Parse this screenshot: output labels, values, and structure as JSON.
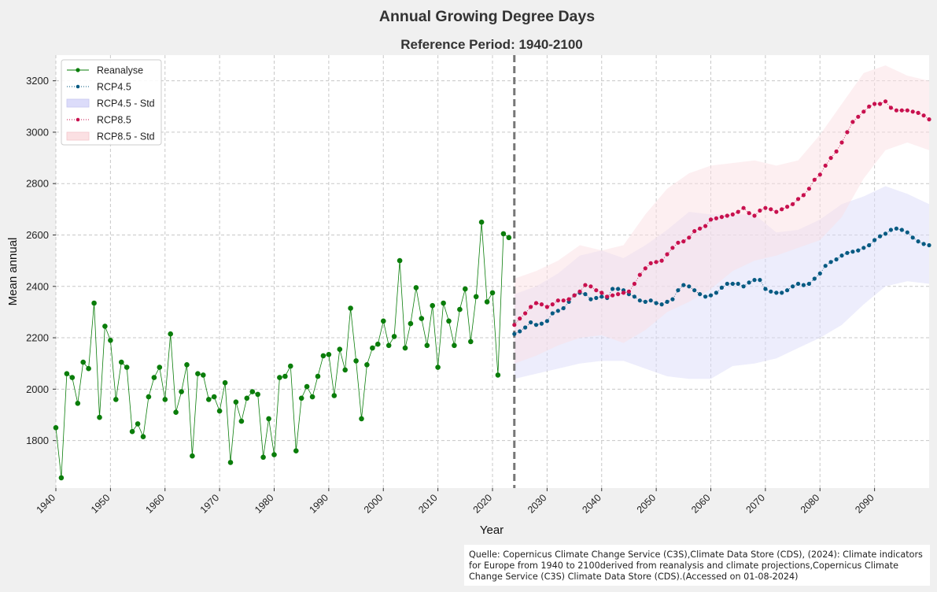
{
  "chart_data": {
    "type": "line",
    "title": "Annual Growing Degree Days",
    "subtitle": "Reference Period: 1940-2100",
    "xlabel": "Year",
    "ylabel": "Mean annual",
    "xlim": [
      1940,
      2100
    ],
    "ylim": [
      1615,
      3300
    ],
    "x_ticks": [
      1940,
      1950,
      1960,
      1970,
      1980,
      1990,
      2000,
      2010,
      2020,
      2030,
      2040,
      2050,
      2060,
      2070,
      2080,
      2090
    ],
    "y_ticks": [
      1800,
      2000,
      2200,
      2400,
      2600,
      2800,
      3000,
      3200
    ],
    "grid": true,
    "legend_position": "top-left",
    "reference_line_year": 2024,
    "colors": {
      "reanalyse": "#0a7d0a",
      "rcp45": "#065a82",
      "rcp45_band": "#dcdcfa",
      "rcp85": "#c8104e",
      "rcp85_band": "#fbe0e3",
      "vline": "#777777"
    },
    "legend": [
      "Reanalyse",
      "RCP4.5",
      "RCP4.5 - Std",
      "RCP8.5",
      "RCP8.5 - Std"
    ],
    "series": [
      {
        "name": "Reanalyse",
        "x": [
          1940,
          1941,
          1942,
          1943,
          1944,
          1945,
          1946,
          1947,
          1948,
          1949,
          1950,
          1951,
          1952,
          1953,
          1954,
          1955,
          1956,
          1957,
          1958,
          1959,
          1960,
          1961,
          1962,
          1963,
          1964,
          1965,
          1966,
          1967,
          1968,
          1969,
          1970,
          1971,
          1972,
          1973,
          1974,
          1975,
          1976,
          1977,
          1978,
          1979,
          1980,
          1981,
          1982,
          1983,
          1984,
          1985,
          1986,
          1987,
          1988,
          1989,
          1990,
          1991,
          1992,
          1993,
          1994,
          1995,
          1996,
          1997,
          1998,
          1999,
          2000,
          2001,
          2002,
          2003,
          2004,
          2005,
          2006,
          2007,
          2008,
          2009,
          2010,
          2011,
          2012,
          2013,
          2014,
          2015,
          2016,
          2017,
          2018,
          2019,
          2020,
          2021,
          2022,
          2023
        ],
        "y": [
          1850,
          1655,
          2060,
          2045,
          1945,
          2105,
          2080,
          2335,
          1890,
          2245,
          2190,
          1960,
          2105,
          2085,
          1835,
          1865,
          1815,
          1970,
          2045,
          2085,
          1960,
          2215,
          1910,
          1990,
          2095,
          1740,
          2060,
          2055,
          1960,
          1970,
          1915,
          2025,
          1715,
          1950,
          1875,
          1965,
          1990,
          1980,
          1735,
          1885,
          1745,
          2045,
          2050,
          2090,
          1760,
          1965,
          2010,
          1970,
          2050,
          2130,
          2135,
          1975,
          2155,
          2075,
          2315,
          2110,
          1885,
          2095,
          2160,
          2175,
          2265,
          2170,
          2205,
          2500,
          2160,
          2255,
          2395,
          2275,
          2170,
          2325,
          2085,
          2335,
          2265,
          2170,
          2310,
          2390,
          2185,
          2360,
          2650,
          2340,
          2375,
          2055,
          2605,
          2590
        ]
      },
      {
        "name": "RCP4.5",
        "x": [
          2024,
          2025,
          2026,
          2027,
          2028,
          2029,
          2030,
          2031,
          2032,
          2033,
          2034,
          2035,
          2036,
          2037,
          2038,
          2039,
          2040,
          2041,
          2042,
          2043,
          2044,
          2045,
          2046,
          2047,
          2048,
          2049,
          2050,
          2051,
          2052,
          2053,
          2054,
          2055,
          2056,
          2057,
          2058,
          2059,
          2060,
          2061,
          2062,
          2063,
          2064,
          2065,
          2066,
          2067,
          2068,
          2069,
          2070,
          2071,
          2072,
          2073,
          2074,
          2075,
          2076,
          2077,
          2078,
          2079,
          2080,
          2081,
          2082,
          2083,
          2084,
          2085,
          2086,
          2087,
          2088,
          2089,
          2090,
          2091,
          2092,
          2093,
          2094,
          2095,
          2096,
          2097,
          2098,
          2099,
          2100
        ],
        "y": [
          2215,
          2225,
          2240,
          2260,
          2250,
          2255,
          2265,
          2295,
          2305,
          2315,
          2340,
          2365,
          2375,
          2370,
          2350,
          2355,
          2360,
          2355,
          2390,
          2390,
          2385,
          2370,
          2360,
          2345,
          2340,
          2345,
          2335,
          2330,
          2340,
          2350,
          2385,
          2405,
          2400,
          2385,
          2370,
          2360,
          2365,
          2375,
          2395,
          2410,
          2410,
          2410,
          2400,
          2415,
          2425,
          2425,
          2390,
          2380,
          2375,
          2375,
          2385,
          2400,
          2410,
          2405,
          2410,
          2430,
          2450,
          2480,
          2495,
          2505,
          2520,
          2530,
          2535,
          2540,
          2550,
          2560,
          2580,
          2595,
          2605,
          2620,
          2625,
          2620,
          2610,
          2590,
          2575,
          2565,
          2560
        ]
      },
      {
        "name": "RCP8.5",
        "x": [
          2024,
          2025,
          2026,
          2027,
          2028,
          2029,
          2030,
          2031,
          2032,
          2033,
          2034,
          2035,
          2036,
          2037,
          2038,
          2039,
          2040,
          2041,
          2042,
          2043,
          2044,
          2045,
          2046,
          2047,
          2048,
          2049,
          2050,
          2051,
          2052,
          2053,
          2054,
          2055,
          2056,
          2057,
          2058,
          2059,
          2060,
          2061,
          2062,
          2063,
          2064,
          2065,
          2066,
          2067,
          2068,
          2069,
          2070,
          2071,
          2072,
          2073,
          2074,
          2075,
          2076,
          2077,
          2078,
          2079,
          2080,
          2081,
          2082,
          2083,
          2084,
          2085,
          2086,
          2087,
          2088,
          2089,
          2090,
          2091,
          2092,
          2093,
          2094,
          2095,
          2096,
          2097,
          2098,
          2099,
          2100
        ],
        "y": [
          2250,
          2275,
          2295,
          2320,
          2335,
          2330,
          2320,
          2330,
          2345,
          2345,
          2350,
          2365,
          2380,
          2405,
          2400,
          2385,
          2375,
          2360,
          2365,
          2370,
          2375,
          2380,
          2410,
          2445,
          2470,
          2490,
          2495,
          2500,
          2525,
          2550,
          2570,
          2575,
          2590,
          2615,
          2625,
          2635,
          2660,
          2665,
          2670,
          2675,
          2680,
          2690,
          2705,
          2685,
          2675,
          2695,
          2705,
          2700,
          2690,
          2700,
          2710,
          2720,
          2740,
          2755,
          2780,
          2815,
          2835,
          2870,
          2900,
          2925,
          2960,
          3000,
          3040,
          3060,
          3080,
          3100,
          3110,
          3110,
          3120,
          3095,
          3085,
          3085,
          3085,
          3080,
          3075,
          3065,
          3050
        ]
      }
    ],
    "bands": [
      {
        "name": "RCP4.5 - Std",
        "x": [
          2024,
          2028,
          2032,
          2036,
          2040,
          2044,
          2048,
          2052,
          2056,
          2060,
          2064,
          2068,
          2072,
          2076,
          2080,
          2084,
          2088,
          2092,
          2096,
          2100
        ],
        "lower": [
          2040,
          2060,
          2080,
          2100,
          2110,
          2110,
          2080,
          2050,
          2040,
          2040,
          2090,
          2100,
          2120,
          2160,
          2200,
          2250,
          2330,
          2400,
          2420,
          2410
        ],
        "upper": [
          2370,
          2400,
          2450,
          2520,
          2540,
          2510,
          2560,
          2620,
          2690,
          2680,
          2680,
          2680,
          2610,
          2620,
          2660,
          2720,
          2750,
          2790,
          2760,
          2720
        ]
      },
      {
        "name": "RCP8.5 - Std",
        "x": [
          2024,
          2028,
          2032,
          2036,
          2040,
          2044,
          2048,
          2052,
          2056,
          2060,
          2064,
          2068,
          2072,
          2076,
          2080,
          2084,
          2088,
          2092,
          2096,
          2100
        ],
        "lower": [
          2100,
          2130,
          2170,
          2200,
          2210,
          2180,
          2230,
          2300,
          2340,
          2390,
          2460,
          2500,
          2520,
          2550,
          2580,
          2670,
          2820,
          2930,
          2960,
          2930
        ],
        "upper": [
          2430,
          2460,
          2500,
          2560,
          2540,
          2560,
          2680,
          2780,
          2840,
          2870,
          2880,
          2890,
          2870,
          2890,
          2990,
          3110,
          3230,
          3260,
          3220,
          3200
        ]
      }
    ]
  },
  "source_text": "Quelle: Copernicus Climate Change Service (C3S),Climate Data Store (CDS), (2024): Climate indicators for Europe from 1940 to 2100derived from reanalysis and climate projections,Copernicus Climate Change Service (C3S) Climate Data Store (CDS).(Accessed on 01-08-2024)"
}
